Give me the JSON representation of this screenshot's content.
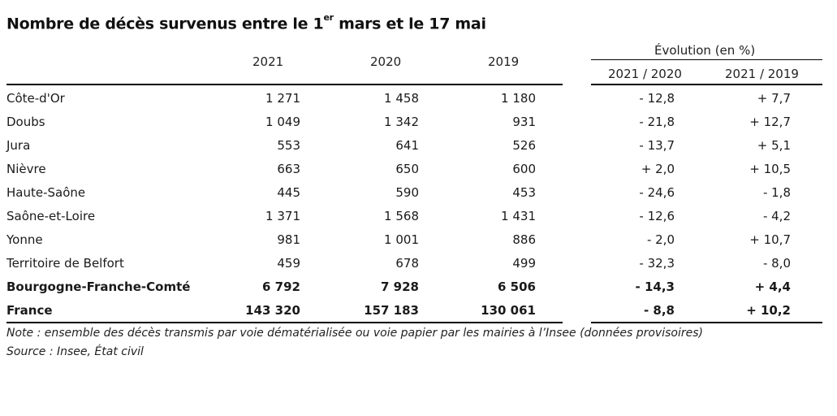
{
  "title": {
    "main": "Nombre de décès survenus entre le 1",
    "sup": "er",
    "rest": " mars et le 17 mai"
  },
  "header": {
    "evolution_label": "Évolution (en %)",
    "col_2021": "2021",
    "col_2020": "2020",
    "col_2019": "2019",
    "col_2021_2020": "2021 / 2020",
    "col_2021_2019": "2021 / 2019"
  },
  "rows": [
    {
      "label": "Côte-d'Or",
      "v2021": "1 271",
      "v2020": "1 458",
      "v2019": "1 180",
      "evo2020": "- 12,8",
      "evo2019": "+ 7,7"
    },
    {
      "label": "Doubs",
      "v2021": "1 049",
      "v2020": "1 342",
      "v2019": "931",
      "evo2020": "- 21,8",
      "evo2019": "+ 12,7"
    },
    {
      "label": "Jura",
      "v2021": "553",
      "v2020": "641",
      "v2019": "526",
      "evo2020": "- 13,7",
      "evo2019": "+ 5,1"
    },
    {
      "label": "Nièvre",
      "v2021": "663",
      "v2020": "650",
      "v2019": "600",
      "evo2020": "+ 2,0",
      "evo2019": "+ 10,5"
    },
    {
      "label": "Haute-Saône",
      "v2021": "445",
      "v2020": "590",
      "v2019": "453",
      "evo2020": "- 24,6",
      "evo2019": "- 1,8"
    },
    {
      "label": "Saône-et-Loire",
      "v2021": "1 371",
      "v2020": "1 568",
      "v2019": "1 431",
      "evo2020": "- 12,6",
      "evo2019": "- 4,2"
    },
    {
      "label": "Yonne",
      "v2021": "981",
      "v2020": "1 001",
      "v2019": "886",
      "evo2020": "- 2,0",
      "evo2019": "+ 10,7"
    },
    {
      "label": "Territoire de Belfort",
      "v2021": "459",
      "v2020": "678",
      "v2019": "499",
      "evo2020": "- 32,3",
      "evo2019": "- 8,0"
    },
    {
      "label": "Bourgogne-Franche-Comté",
      "v2021": "6 792",
      "v2020": "7 928",
      "v2019": "6 506",
      "evo2020": "- 14,3",
      "evo2019": "+ 4,4"
    },
    {
      "label": "France",
      "v2021": "143 320",
      "v2020": "157 183",
      "v2019": "130 061",
      "evo2020": "- 8,8",
      "evo2019": "+ 10,2"
    }
  ],
  "notes": {
    "note": "Note : ensemble des décès transmis par voie dématérialisée ou voie papier par les mairies à l’Insee (données provisoires)",
    "source": "Source : Insee, État civil"
  }
}
